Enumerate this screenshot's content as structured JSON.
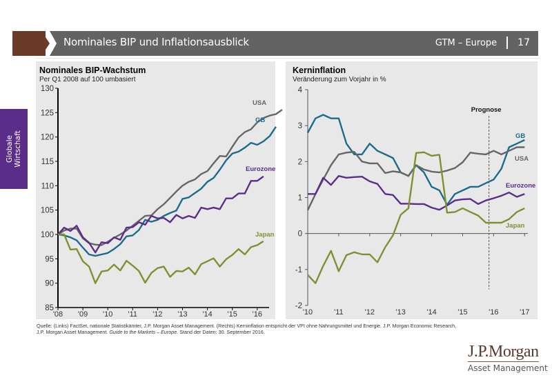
{
  "header": {
    "title": "Nominales BIP und Inflationsausblick",
    "section": "GTM – Europe",
    "page_number": "17"
  },
  "side_tab": {
    "line1": "Globale",
    "line2": "Wirtschaft"
  },
  "colors": {
    "usa": "#666666",
    "gb": "#1d6b8c",
    "eurozone": "#5b2d8a",
    "japan": "#7e9132",
    "header_bar": "#636363",
    "header_accent": "#6b3a28",
    "side_tab": "#5b2d8a",
    "panel_bg": "#e8e8e8"
  },
  "chart_data": [
    {
      "type": "line",
      "title": "Nominales BIP-Wachstum",
      "subtitle": "Per Q1 2008 auf 100 umbasiert",
      "xlabel": "",
      "ylabel": "",
      "ylim": [
        85,
        130
      ],
      "yticks": [
        85,
        90,
        95,
        100,
        105,
        110,
        115,
        120,
        125,
        130
      ],
      "xtick_labels": [
        "'08",
        "'09",
        "'10",
        "'11",
        "'12",
        "'13",
        "'14",
        "'15",
        "'16"
      ],
      "x_start": 2008.0,
      "x_step": 0.25,
      "grid": false,
      "series": [
        {
          "name": "USA",
          "key": "usa",
          "values": [
            100,
            100.8,
            101.2,
            101.2,
            99.2,
            98.2,
            97.9,
            97.8,
            98.5,
            99.3,
            100.0,
            100.8,
            101.8,
            102.8,
            103.8,
            103.9,
            105.2,
            106.2,
            107.5,
            108.8,
            110.0,
            110.8,
            111.3,
            112.4,
            113.0,
            114.6,
            116.1,
            116.0,
            118.0,
            119.9,
            121.0,
            121.6,
            123.0,
            123.9,
            124.4,
            124.7,
            125.6
          ]
        },
        {
          "name": "GB",
          "key": "gb",
          "values": [
            100,
            99.8,
            99.4,
            98.8,
            97.3,
            95.9,
            95.6,
            95.9,
            96.2,
            97.0,
            98.0,
            99.6,
            99.8,
            100.9,
            103.0,
            102.6,
            103.0,
            103.8,
            104.4,
            104.9,
            107.3,
            107.6,
            108.5,
            109.4,
            110.8,
            111.6,
            113.3,
            115.2,
            116.6,
            117.0,
            117.8,
            118.8,
            118.4,
            119.1,
            120.2,
            122.1
          ]
        },
        {
          "name": "Eurozone",
          "key": "eurozone",
          "values": [
            100,
            101.4,
            100.7,
            101.8,
            99.4,
            98.3,
            96.3,
            98.4,
            98.2,
            99.4,
            98.9,
            101.4,
            101.5,
            102.5,
            102.0,
            103.8,
            103.3,
            103.4,
            102.5,
            104.0,
            103.3,
            103.8,
            103.4,
            105.5,
            105.2,
            105.5,
            105.2,
            107.4,
            107.4,
            108.4,
            108.4,
            111.0,
            111.0,
            111.9
          ]
        },
        {
          "name": "Japan",
          "key": "japan",
          "values": [
            100,
            100.0,
            96.9,
            97.0,
            94.5,
            93.4,
            90.0,
            92.4,
            92.6,
            93.8,
            92.6,
            94.6,
            93.6,
            92.5,
            90.1,
            92.1,
            93.1,
            93.4,
            91.3,
            92.5,
            92.4,
            93.2,
            91.8,
            93.9,
            94.5,
            95.1,
            93.4,
            94.9,
            95.8,
            97.0,
            95.9,
            97.4,
            97.8,
            98.6
          ]
        }
      ],
      "series_labels": [
        "USA",
        "GB",
        "Eurozone",
        "Japan"
      ]
    },
    {
      "type": "line",
      "title": "Kerninflation",
      "subtitle": "Veränderung zum Vorjahr in %",
      "xlabel": "",
      "ylabel": "",
      "ylim": [
        -2,
        4
      ],
      "yticks": [
        -2,
        -1,
        0,
        1,
        2,
        3,
        4
      ],
      "xtick_labels": [
        "'10",
        "'11",
        "'12",
        "'13",
        "'14",
        "'15",
        "'16",
        "'17"
      ],
      "x_start": 2010.0,
      "x_step": 0.25,
      "grid": false,
      "annotation": "Prognose",
      "forecast_start": 2015.85,
      "series": [
        {
          "name": "GB",
          "key": "gb",
          "values": [
            2.8,
            3.2,
            3.3,
            3.2,
            3.2,
            2.5,
            2.2,
            2.2,
            2.5,
            2.3,
            2.2,
            2.1,
            1.7,
            1.6,
            1.9,
            1.7,
            1.3,
            1.2,
            0.8,
            1.1,
            1.2,
            1.3,
            1.3,
            1.4,
            1.5,
            1.8,
            2.4,
            2.5,
            2.6
          ]
        },
        {
          "name": "USA",
          "key": "usa",
          "values": [
            0.65,
            1.1,
            1.5,
            1.9,
            2.2,
            2.25,
            2.27,
            2.0,
            1.95,
            1.95,
            1.68,
            1.73,
            1.7,
            1.6,
            1.9,
            1.78,
            1.72,
            1.7,
            1.75,
            1.82,
            1.98,
            2.25,
            2.22,
            2.2,
            2.3,
            2.2,
            2.3,
            2.4,
            2.4
          ]
        },
        {
          "name": "Eurozone",
          "key": "eurozone",
          "values": [
            1.1,
            1.1,
            1.55,
            1.35,
            1.6,
            1.55,
            1.57,
            1.58,
            1.45,
            1.38,
            1.1,
            1.07,
            0.83,
            0.83,
            0.82,
            0.82,
            0.72,
            0.66,
            0.78,
            0.92,
            0.95,
            0.96,
            0.82,
            0.92,
            0.98,
            1.05,
            1.14,
            1.02,
            1.1
          ]
        },
        {
          "name": "Japan",
          "key": "japan",
          "values": [
            -1.15,
            -1.38,
            -0.9,
            -0.48,
            -1.05,
            -0.6,
            -0.52,
            -0.58,
            -0.58,
            -0.8,
            -0.38,
            -0.05,
            0.52,
            0.7,
            2.24,
            2.26,
            2.16,
            2.19,
            0.58,
            0.6,
            0.7,
            0.6,
            0.5,
            0.3,
            0.3,
            0.3,
            0.4,
            0.6,
            0.7
          ]
        }
      ],
      "series_labels": [
        "GB",
        "USA",
        "Eurozone",
        "Japan"
      ]
    }
  ],
  "footnote": {
    "line1": "Quelle: (Links) FactSet, nationale Statistikämter, J.P. Morgan Asset Management. (Rechts) Kerninflation entspricht der VPI ohne Nahrungsmittel und Energie. J.P. Morgan Economic Research,",
    "line2_prefix": "J.P. Morgan Asset Management. ",
    "line2_italic": "Guide to the Markets – Europe",
    "line2_suffix": ". Stand der Daten: 30. September 2016."
  },
  "logo": {
    "brand": "J.P.Morgan",
    "division": "Asset Management"
  }
}
